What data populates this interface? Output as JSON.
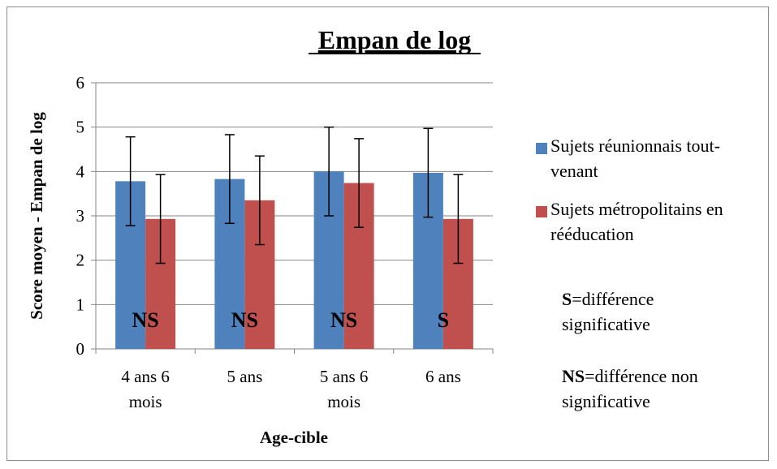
{
  "chart_data": {
    "type": "bar",
    "title": "Empan de log",
    "xlabel": "Age-cible",
    "ylabel": "Score moyen - Empan de log",
    "ylim": [
      0,
      6
    ],
    "yticks": [
      "0",
      "1",
      "2",
      "3",
      "4",
      "5",
      "6"
    ],
    "categories": [
      [
        "4 ans 6",
        "mois"
      ],
      [
        "5 ans"
      ],
      [
        "5 ans 6",
        "mois"
      ],
      [
        "6 ans"
      ]
    ],
    "series": [
      {
        "name": "Sujets réunionnais tout-venant",
        "color": "#4f81bd",
        "values": [
          3.78,
          3.83,
          4.0,
          3.97
        ],
        "error": [
          1.0,
          1.0,
          1.0,
          1.0
        ]
      },
      {
        "name": "Sujets métropolitains en rééducation",
        "color": "#c0504d",
        "values": [
          2.93,
          3.35,
          3.74,
          2.93
        ],
        "error": [
          1.0,
          1.0,
          1.0,
          1.0
        ]
      }
    ],
    "annotations": [
      "NS",
      "NS",
      "NS",
      "S"
    ],
    "grid": true,
    "legend_position": "right"
  },
  "legend": {
    "items": [
      {
        "lines": [
          "Sujets réunionnais tout-",
          "venant"
        ],
        "color": "#4f81bd"
      },
      {
        "lines": [
          "Sujets métropolitains en",
          "rééducation"
        ],
        "color": "#c0504d"
      }
    ]
  },
  "notes": {
    "s_key": "S",
    "s_text": "=différence",
    "s_text2": "significative",
    "ns_key": "NS",
    "ns_text": "=différence non",
    "ns_text2": "significative"
  }
}
